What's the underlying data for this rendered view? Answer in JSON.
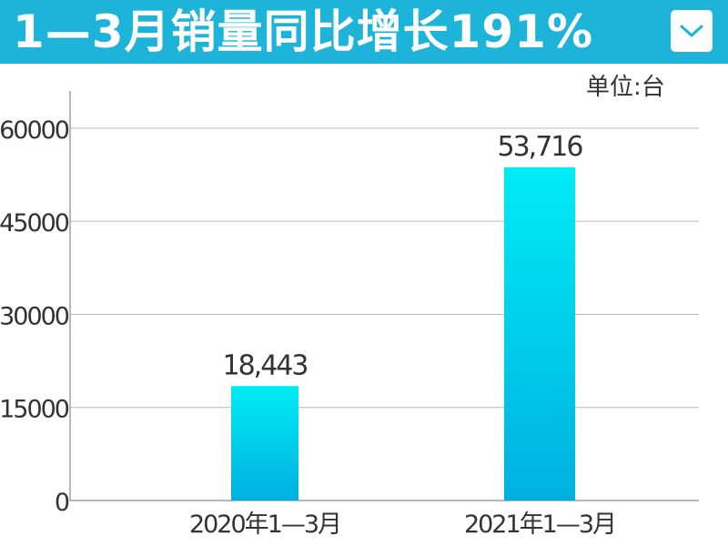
{
  "header": {
    "title": "1—3月销量同比增长191%",
    "icon": "chevron-down-icon",
    "background": "#1eb3d8"
  },
  "unit_label": "单位:台",
  "chart_data": {
    "type": "bar",
    "title": "1—3月销量同比增长191%",
    "categories": [
      "2020年1—3月",
      "2021年1—3月"
    ],
    "values": [
      18443,
      53716
    ],
    "data_labels": [
      "18,443",
      "53,716"
    ],
    "y_ticks": [
      0,
      15000,
      30000,
      45000,
      60000
    ],
    "ylim": [
      0,
      66000
    ],
    "grid": true,
    "bar_color_top": "#00ecf4",
    "bar_color_bottom": "#00b0e0"
  }
}
